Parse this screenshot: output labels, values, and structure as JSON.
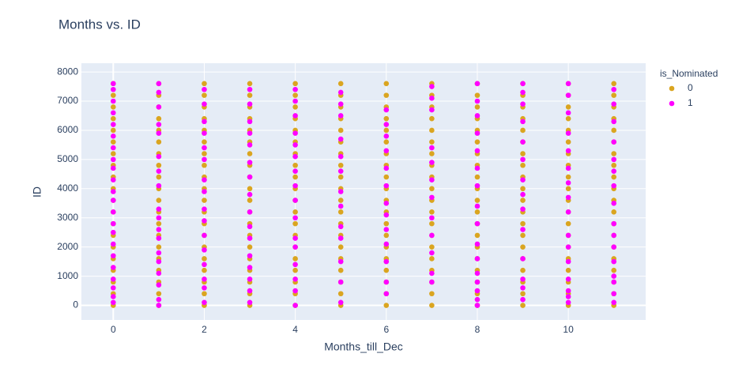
{
  "chart_data": {
    "type": "scatter",
    "title": "Months vs. ID",
    "x_label": "Months_till_Dec",
    "y_label": "ID",
    "legend_title": "is_Nominated",
    "legend_position": "right",
    "grid": true,
    "xlim": [
      -0.7,
      11.7
    ],
    "ylim": [
      -500,
      8300
    ],
    "xticks": [
      0,
      2,
      4,
      6,
      8,
      10
    ],
    "yticks": [
      0,
      1000,
      2000,
      3000,
      4000,
      5000,
      6000,
      7000,
      8000
    ],
    "series": [
      {
        "name": "0",
        "color": "#daa520",
        "x": [
          0,
          0,
          0,
          0,
          0,
          0,
          0,
          0,
          0,
          0,
          0,
          0,
          0,
          0,
          0,
          0,
          0,
          0,
          0,
          0,
          1,
          1,
          1,
          1,
          1,
          1,
          1,
          1,
          1,
          1,
          1,
          1,
          1,
          1,
          1,
          1,
          1,
          1,
          1,
          1,
          2,
          2,
          2,
          2,
          2,
          2,
          2,
          2,
          2,
          2,
          2,
          2,
          2,
          2,
          2,
          2,
          2,
          2,
          2,
          2,
          3,
          3,
          3,
          3,
          3,
          3,
          3,
          3,
          3,
          3,
          3,
          3,
          3,
          3,
          3,
          3,
          3,
          3,
          3,
          3,
          4,
          4,
          4,
          4,
          4,
          4,
          4,
          4,
          4,
          4,
          4,
          4,
          4,
          4,
          4,
          4,
          4,
          4,
          4,
          4,
          5,
          5,
          5,
          5,
          5,
          5,
          5,
          5,
          5,
          5,
          5,
          5,
          5,
          5,
          5,
          5,
          5,
          5,
          5,
          5,
          6,
          6,
          6,
          6,
          6,
          6,
          6,
          6,
          6,
          6,
          6,
          6,
          6,
          6,
          6,
          6,
          6,
          6,
          6,
          6,
          7,
          7,
          7,
          7,
          7,
          7,
          7,
          7,
          7,
          7,
          7,
          7,
          7,
          7,
          7,
          7,
          7,
          7,
          7,
          7,
          8,
          8,
          8,
          8,
          8,
          8,
          8,
          8,
          8,
          8,
          8,
          8,
          8,
          8,
          8,
          8,
          8,
          8,
          8,
          8,
          9,
          9,
          9,
          9,
          9,
          9,
          9,
          9,
          9,
          9,
          9,
          9,
          9,
          9,
          9,
          9,
          9,
          9,
          9,
          9,
          10,
          10,
          10,
          10,
          10,
          10,
          10,
          10,
          10,
          10,
          10,
          10,
          10,
          10,
          10,
          10,
          10,
          10,
          10,
          10,
          11,
          11,
          11,
          11,
          11,
          11,
          11,
          11,
          11,
          11,
          11,
          11,
          11,
          11,
          11,
          11,
          11,
          11,
          11,
          11
        ],
        "values": [
          0,
          400,
          800,
          1200,
          1600,
          2000,
          2400,
          2800,
          3200,
          3600,
          4000,
          4400,
          4800,
          5200,
          5600,
          6000,
          6400,
          6800,
          7200,
          7600,
          0,
          400,
          800,
          1200,
          1600,
          2000,
          2400,
          2800,
          3200,
          3600,
          4000,
          4400,
          4800,
          5200,
          5600,
          6000,
          6400,
          6800,
          7200,
          7600,
          0,
          400,
          800,
          1200,
          1600,
          2000,
          2400,
          2800,
          3200,
          3600,
          4000,
          4400,
          4800,
          5200,
          5600,
          6000,
          6400,
          6800,
          7200,
          7600,
          0,
          400,
          800,
          1200,
          1600,
          2000,
          2400,
          2800,
          3200,
          3600,
          4000,
          4400,
          4800,
          5200,
          5600,
          6000,
          6400,
          6800,
          7200,
          7600,
          0,
          400,
          800,
          1200,
          1600,
          2000,
          2400,
          2800,
          3200,
          3600,
          4000,
          4400,
          4800,
          5200,
          5600,
          6000,
          6400,
          6800,
          7200,
          7600,
          0,
          400,
          800,
          1200,
          1600,
          2000,
          2400,
          2800,
          3200,
          3600,
          4000,
          4400,
          4800,
          5200,
          5600,
          6000,
          6400,
          6800,
          7200,
          7600,
          0,
          400,
          800,
          1200,
          1600,
          2000,
          2400,
          2800,
          3200,
          3600,
          4000,
          4400,
          4800,
          5200,
          5600,
          6000,
          6400,
          6800,
          7200,
          7600,
          0,
          400,
          800,
          1200,
          1600,
          2000,
          2400,
          2800,
          3200,
          3600,
          4000,
          4400,
          4800,
          5200,
          5600,
          6000,
          6400,
          6800,
          7200,
          7600,
          0,
          400,
          800,
          1200,
          1600,
          2000,
          2400,
          2800,
          3200,
          3600,
          4000,
          4400,
          4800,
          5200,
          5600,
          6000,
          6400,
          6800,
          7200,
          7600,
          0,
          400,
          800,
          1200,
          1600,
          2000,
          2400,
          2800,
          3200,
          3600,
          4000,
          4400,
          4800,
          5200,
          5600,
          6000,
          6400,
          6800,
          7200,
          7600,
          0,
          400,
          800,
          1200,
          1600,
          2000,
          2400,
          2800,
          3200,
          3600,
          4000,
          4400,
          4800,
          5200,
          5600,
          6000,
          6400,
          6800,
          7200,
          7600,
          0,
          400,
          800,
          1200,
          1600,
          2000,
          2400,
          2800,
          3200,
          3600,
          4000,
          4400,
          4800,
          5200,
          5600,
          6000,
          6400,
          6800,
          7200,
          7600
        ]
      },
      {
        "name": "1",
        "color": "#ff00ff",
        "x": [
          0,
          0,
          0,
          0,
          0,
          0,
          0,
          0,
          0,
          0,
          0,
          0,
          0,
          0,
          0,
          0,
          0,
          0,
          0,
          0,
          0,
          0,
          1,
          1,
          1,
          1,
          1,
          1,
          1,
          1,
          1,
          1,
          1,
          1,
          1,
          1,
          1,
          1,
          1,
          1,
          2,
          2,
          2,
          2,
          2,
          2,
          2,
          2,
          2,
          2,
          2,
          2,
          2,
          2,
          2,
          2,
          3,
          3,
          3,
          3,
          3,
          3,
          3,
          3,
          3,
          3,
          3,
          3,
          3,
          3,
          3,
          3,
          4,
          4,
          4,
          4,
          4,
          4,
          4,
          4,
          4,
          4,
          4,
          4,
          4,
          4,
          4,
          4,
          5,
          5,
          5,
          5,
          5,
          5,
          5,
          5,
          5,
          5,
          5,
          5,
          5,
          6,
          6,
          6,
          6,
          6,
          6,
          6,
          6,
          6,
          6,
          6,
          6,
          6,
          7,
          7,
          7,
          7,
          7,
          7,
          7,
          7,
          7,
          7,
          7,
          7,
          8,
          8,
          8,
          8,
          8,
          8,
          8,
          8,
          8,
          8,
          8,
          8,
          8,
          8,
          8,
          8,
          9,
          9,
          9,
          9,
          9,
          9,
          9,
          9,
          9,
          9,
          9,
          9,
          9,
          9,
          10,
          10,
          10,
          10,
          10,
          10,
          10,
          10,
          10,
          10,
          10,
          10,
          10,
          10,
          10,
          10,
          11,
          11,
          11,
          11,
          11,
          11,
          11,
          11,
          11,
          11,
          11,
          11,
          11,
          11,
          11,
          11
        ],
        "values": [
          100,
          300,
          600,
          900,
          1300,
          1700,
          2100,
          2500,
          2800,
          3200,
          3600,
          3900,
          4300,
          4700,
          5000,
          5400,
          5800,
          6200,
          6600,
          7000,
          7400,
          7600,
          0,
          200,
          700,
          1100,
          1500,
          1800,
          2300,
          2600,
          3000,
          3300,
          4100,
          4600,
          5100,
          5900,
          6200,
          6800,
          7300,
          7600,
          100,
          600,
          900,
          1400,
          1900,
          2400,
          2900,
          3300,
          3900,
          4300,
          5000,
          5400,
          5900,
          6300,
          6900,
          7400,
          100,
          500,
          900,
          1300,
          1700,
          2300,
          2700,
          3200,
          3800,
          4400,
          4900,
          5500,
          5900,
          6300,
          6900,
          7400,
          0,
          500,
          900,
          1400,
          2000,
          2300,
          3000,
          3600,
          4100,
          4600,
          5100,
          5500,
          5900,
          6500,
          7000,
          7400,
          100,
          800,
          1500,
          2300,
          2700,
          3400,
          3900,
          4600,
          5100,
          5700,
          6500,
          6900,
          7300,
          400,
          800,
          1500,
          2100,
          2600,
          3100,
          3500,
          4100,
          4700,
          5300,
          5800,
          6200,
          6700,
          800,
          1100,
          1800,
          2400,
          3000,
          3700,
          4300,
          4900,
          5400,
          6700,
          7100,
          7500,
          0,
          200,
          500,
          800,
          1100,
          1600,
          2100,
          2800,
          3400,
          4100,
          4700,
          5300,
          5900,
          6500,
          7000,
          7600,
          200,
          600,
          900,
          1600,
          2600,
          3300,
          3800,
          4300,
          5000,
          5600,
          6300,
          6900,
          7300,
          7600,
          100,
          300,
          500,
          900,
          1500,
          2000,
          2400,
          3200,
          3700,
          4200,
          4700,
          5300,
          5900,
          6600,
          7200,
          7600,
          100,
          400,
          800,
          1000,
          1500,
          2000,
          2400,
          2800,
          3500,
          4100,
          4600,
          5000,
          5600,
          6300,
          6900,
          7400
        ]
      }
    ]
  }
}
